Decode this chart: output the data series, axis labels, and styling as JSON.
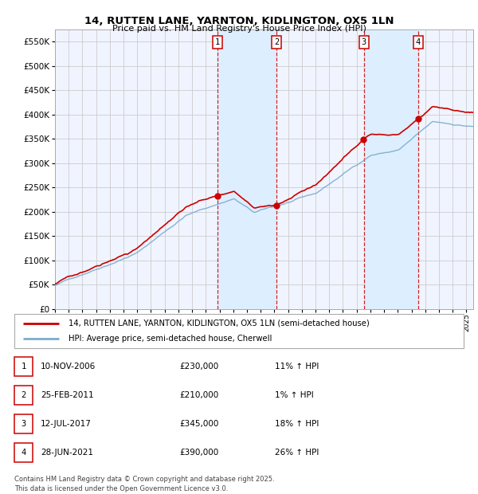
{
  "title": "14, RUTTEN LANE, YARNTON, KIDLINGTON, OX5 1LN",
  "subtitle": "Price paid vs. HM Land Registry's House Price Index (HPI)",
  "ytick_values": [
    0,
    50000,
    100000,
    150000,
    200000,
    250000,
    300000,
    350000,
    400000,
    450000,
    500000,
    550000
  ],
  "ylim": [
    0,
    575000
  ],
  "xlim_start": 1995.0,
  "xlim_end": 2025.5,
  "sale_dates": [
    2006.86,
    2011.15,
    2017.53,
    2021.49
  ],
  "sale_prices": [
    230000,
    210000,
    345000,
    390000
  ],
  "sale_labels": [
    "1",
    "2",
    "3",
    "4"
  ],
  "legend_line1": "14, RUTTEN LANE, YARNTON, KIDLINGTON, OX5 1LN (semi-detached house)",
  "legend_line2": "HPI: Average price, semi-detached house, Cherwell",
  "table_entries": [
    {
      "num": "1",
      "date": "10-NOV-2006",
      "price": "£230,000",
      "pct": "11% ↑ HPI"
    },
    {
      "num": "2",
      "date": "25-FEB-2011",
      "price": "£210,000",
      "pct": "1% ↑ HPI"
    },
    {
      "num": "3",
      "date": "12-JUL-2017",
      "price": "£345,000",
      "pct": "18% ↑ HPI"
    },
    {
      "num": "4",
      "date": "28-JUN-2021",
      "price": "£390,000",
      "pct": "26% ↑ HPI"
    }
  ],
  "footnote": "Contains HM Land Registry data © Crown copyright and database right 2025.\nThis data is licensed under the Open Government Licence v3.0.",
  "line_color_red": "#cc0000",
  "line_color_blue": "#7aaccc",
  "grid_color": "#cccccc",
  "shading_color": "#ddeeff",
  "chart_bg": "#f0f4ff"
}
